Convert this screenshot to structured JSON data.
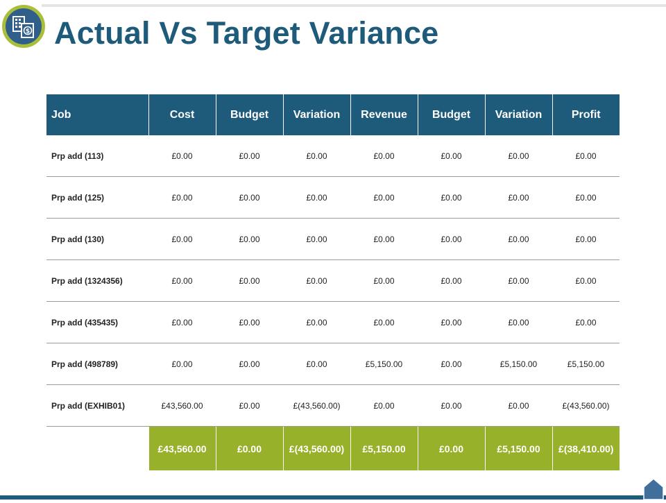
{
  "slide": {
    "title": "Actual Vs Target Variance",
    "logo_icon": "finance-calculator-document-icon",
    "home_icon": "home-icon",
    "colors": {
      "primary": "#1e5a7a",
      "accent": "#98b12a",
      "logo_ring": "#a9bf3a"
    }
  },
  "table": {
    "headers": [
      "Job",
      "Cost",
      "Budget",
      "Variation",
      "Revenue",
      "Budget",
      "Variation",
      "Profit"
    ],
    "rows": [
      [
        "Prp add (113)",
        "£0.00",
        "£0.00",
        "£0.00",
        "£0.00",
        "£0.00",
        "£0.00",
        "£0.00"
      ],
      [
        "Prp add (125)",
        "£0.00",
        "£0.00",
        "£0.00",
        "£0.00",
        "£0.00",
        "£0.00",
        "£0.00"
      ],
      [
        "Prp add (130)",
        "£0.00",
        "£0.00",
        "£0.00",
        "£0.00",
        "£0.00",
        "£0.00",
        "£0.00"
      ],
      [
        "Prp add (1324356)",
        "£0.00",
        "£0.00",
        "£0.00",
        "£0.00",
        "£0.00",
        "£0.00",
        "£0.00"
      ],
      [
        "Prp add (435435)",
        "£0.00",
        "£0.00",
        "£0.00",
        "£0.00",
        "£0.00",
        "£0.00",
        "£0.00"
      ],
      [
        "Prp add (498789)",
        "£0.00",
        "£0.00",
        "£0.00",
        "£5,150.00",
        "£0.00",
        "£5,150.00",
        "£5,150.00"
      ],
      [
        "Prp add (EXHIB01)",
        "£43,560.00",
        "£0.00",
        "£(43,560.00)",
        "£0.00",
        "£0.00",
        "£0.00",
        "£(43,560.00)"
      ]
    ],
    "totals": [
      "£43,560.00",
      "£0.00",
      "£(43,560.00)",
      "£5,150.00",
      "£0.00",
      "£5,150.00",
      "£(38,410.00)"
    ]
  }
}
